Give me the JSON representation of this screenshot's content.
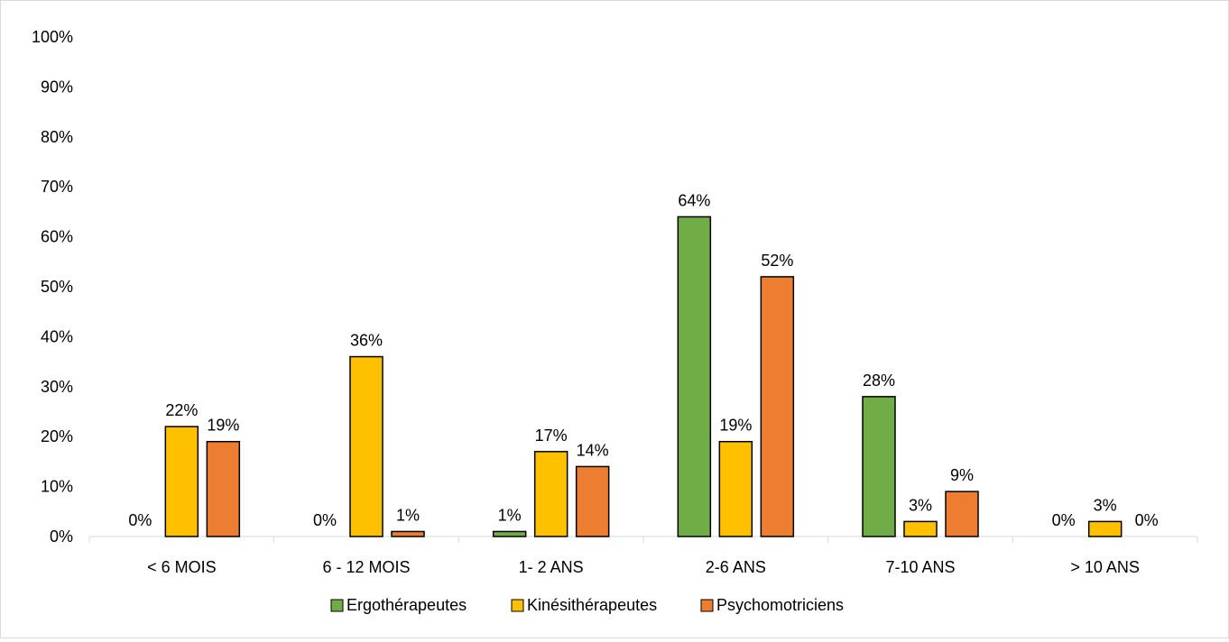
{
  "chart_data": {
    "type": "bar",
    "categories": [
      "< 6 MOIS",
      "6 - 12 MOIS",
      "1- 2 ANS",
      "2-6 ANS",
      "7-10 ANS",
      "> 10 ANS"
    ],
    "series": [
      {
        "name": "Ergothérapeutes",
        "color": "#70ad47",
        "values": [
          0,
          0,
          1,
          64,
          28,
          0
        ]
      },
      {
        "name": "Kinésithérapeutes",
        "color": "#ffc000",
        "values": [
          22,
          36,
          17,
          19,
          3,
          3
        ]
      },
      {
        "name": "Psychomotriciens",
        "color": "#ed7d31",
        "values": [
          19,
          1,
          14,
          52,
          9,
          0
        ]
      }
    ],
    "ylim": [
      0,
      100
    ],
    "yticks": [
      0,
      10,
      20,
      30,
      40,
      50,
      60,
      70,
      80,
      90,
      100
    ],
    "value_suffix": "%",
    "grid": false,
    "legend_position": "bottom"
  }
}
